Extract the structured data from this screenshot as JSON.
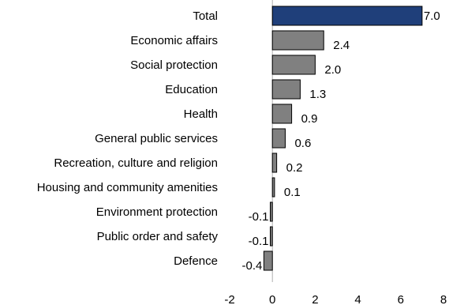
{
  "chart_data": {
    "type": "bar",
    "orientation": "horizontal",
    "categories": [
      "Total",
      "Economic affairs",
      "Social protection",
      "Education",
      "Health",
      "General public services",
      "Recreation, culture and religion",
      "Housing and community amenities",
      "Environment protection",
      "Public order and safety",
      "Defence"
    ],
    "values": [
      7.0,
      2.4,
      2.0,
      1.3,
      0.9,
      0.6,
      0.2,
      0.1,
      -0.1,
      -0.1,
      -0.4
    ],
    "data_labels": [
      "7.0",
      "2.4",
      "2.0",
      "1.3",
      "0.9",
      "0.6",
      "0.2",
      "0.1",
      "-0.1",
      "-0.1",
      "-0.4"
    ],
    "xlim": [
      -2,
      8
    ],
    "x_ticks": [
      -2,
      0,
      2,
      4,
      6,
      8
    ],
    "x_tick_labels": [
      "-2",
      "0",
      "2",
      "4",
      "6",
      "8"
    ],
    "grid": false,
    "colors": {
      "highlight": "#1f3f7a",
      "bar": "#808080",
      "bar_edge": "#000000",
      "axis": "#b0b0b0"
    },
    "highlight_category": "Total"
  }
}
